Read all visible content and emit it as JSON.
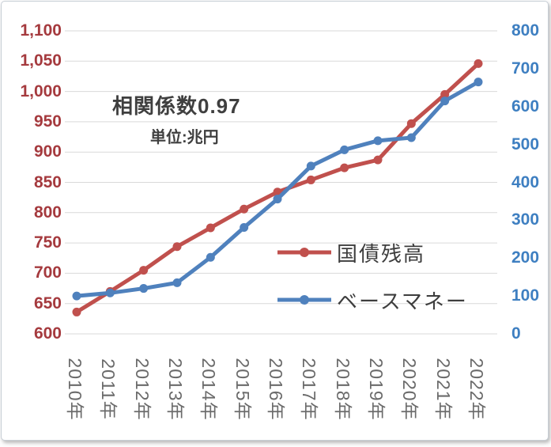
{
  "chart_data": {
    "type": "line",
    "title": "",
    "annotation_title": "相関係数0.97",
    "annotation_unit": "単位:兆円",
    "categories": [
      "2010年",
      "2011年",
      "2012年",
      "2013年",
      "2014年",
      "2015年",
      "2016年",
      "2017年",
      "2018年",
      "2019年",
      "2020年",
      "2021年",
      "2022年"
    ],
    "series": [
      {
        "key": "bond-balance",
        "name": "国債残高",
        "axis": "left",
        "color": "#c0504d",
        "values": [
          636,
          670,
          705,
          744,
          775,
          806,
          834,
          854,
          874,
          887,
          947,
          995,
          1046
        ]
      },
      {
        "key": "base-money",
        "name": "ベースマネー",
        "axis": "right",
        "color": "#4f81bd",
        "values": [
          100,
          108,
          120,
          135,
          202,
          281,
          356,
          443,
          486,
          510,
          518,
          615,
          665
        ]
      }
    ],
    "left_axis": {
      "min": 600,
      "max": 1100,
      "step": 50,
      "labels": [
        "600",
        "650",
        "700",
        "750",
        "800",
        "850",
        "900",
        "950",
        "1,000",
        "1,050",
        "1,100"
      ],
      "color": "#a53a3e"
    },
    "right_axis": {
      "min": 0,
      "max": 800,
      "step": 100,
      "labels": [
        "0",
        "100",
        "200",
        "300",
        "400",
        "500",
        "600",
        "700",
        "800"
      ],
      "color": "#3e7fc1"
    },
    "x_label_color": "#6b6b6b",
    "grid": true,
    "gridline_color": "#d9d9d9",
    "legend_position": "inside-right"
  }
}
